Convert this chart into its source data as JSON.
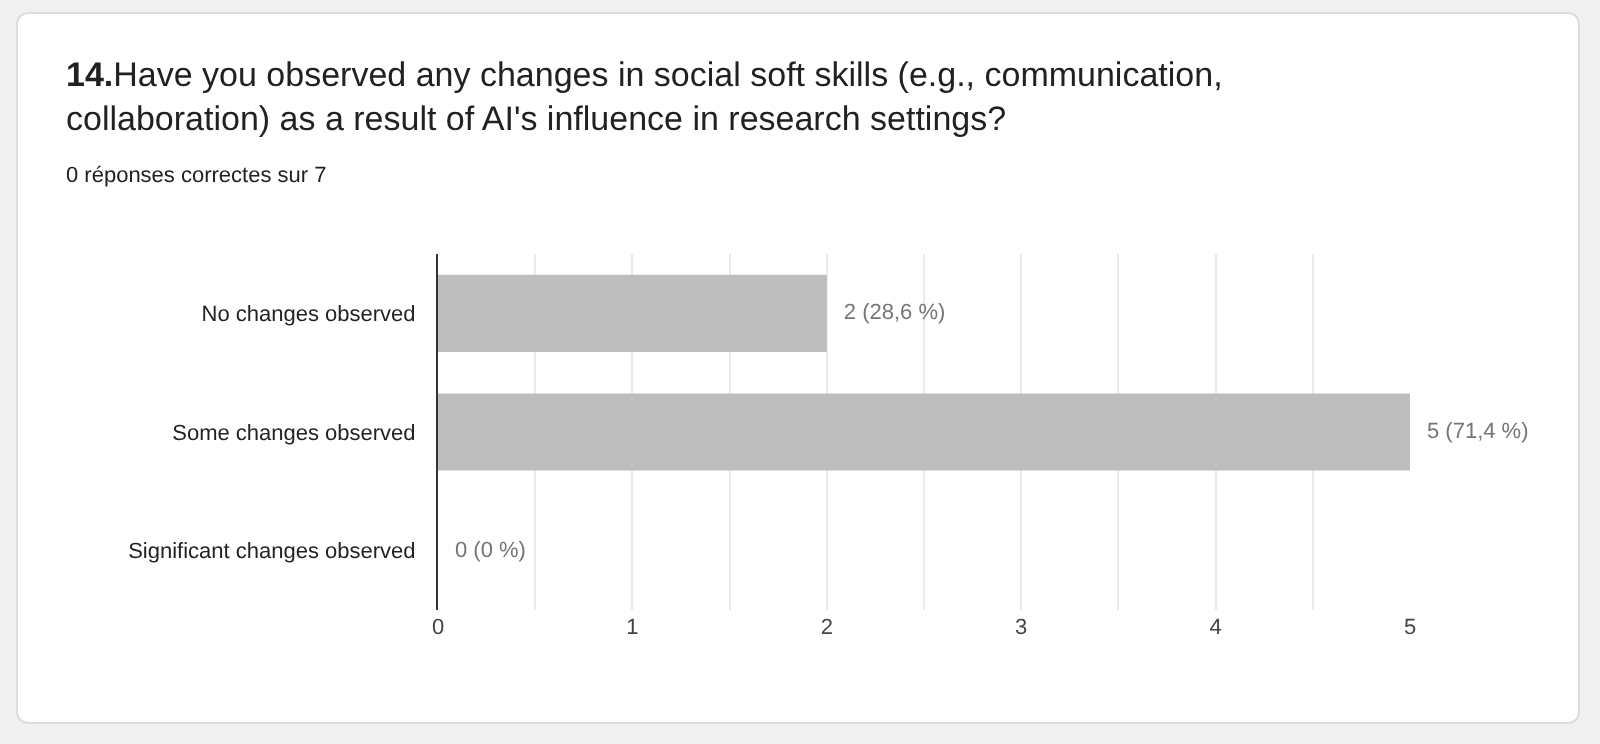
{
  "chart_data": {
    "type": "bar",
    "orientation": "horizontal",
    "title": "14.Have you observed any changes in social soft skills (e.g., communication, collaboration) as a result of AI's influence in research settings?",
    "subtitle": "0 réponses correctes sur 7",
    "categories": [
      "No changes observed",
      "Some changes observed",
      "Significant changes observed"
    ],
    "values": [
      2,
      5,
      0
    ],
    "value_labels": [
      "2 (28,6 %)",
      "5 (71,4 %)",
      "0 (0 %)"
    ],
    "color": "#bdbdbd",
    "xlim": [
      0,
      5
    ],
    "xticks": [
      0,
      {
        "value": 0.5,
        "label": null
      },
      1,
      {
        "value": 1.5,
        "label": null
      },
      2,
      {
        "value": 2.5,
        "label": null
      },
      3,
      {
        "value": 3.5,
        "label": null
      },
      4,
      {
        "value": 4.5,
        "label": null
      },
      5
    ],
    "grid": "x",
    "legend": false
  }
}
